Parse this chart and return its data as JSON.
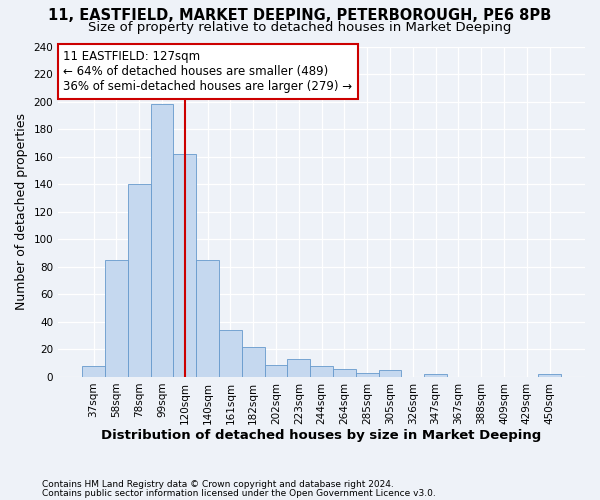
{
  "title1": "11, EASTFIELD, MARKET DEEPING, PETERBOROUGH, PE6 8PB",
  "title2": "Size of property relative to detached houses in Market Deeping",
  "xlabel": "Distribution of detached houses by size in Market Deeping",
  "ylabel": "Number of detached properties",
  "categories": [
    "37sqm",
    "58sqm",
    "78sqm",
    "99sqm",
    "120sqm",
    "140sqm",
    "161sqm",
    "182sqm",
    "202sqm",
    "223sqm",
    "244sqm",
    "264sqm",
    "285sqm",
    "305sqm",
    "326sqm",
    "347sqm",
    "367sqm",
    "388sqm",
    "409sqm",
    "429sqm",
    "450sqm"
  ],
  "values": [
    8,
    85,
    140,
    198,
    162,
    85,
    34,
    22,
    9,
    13,
    8,
    6,
    3,
    5,
    0,
    2,
    0,
    0,
    0,
    0,
    2
  ],
  "bar_color": "#c5d8ef",
  "bar_edge_color": "#6699cc",
  "vline_color": "#cc0000",
  "vline_x": 4.0,
  "annotation_line1": "11 EASTFIELD: 127sqm",
  "annotation_line2": "← 64% of detached houses are smaller (489)",
  "annotation_line3": "36% of semi-detached houses are larger (279) →",
  "annotation_box_facecolor": "#ffffff",
  "annotation_box_edgecolor": "#cc0000",
  "ylim": [
    0,
    240
  ],
  "yticks": [
    0,
    20,
    40,
    60,
    80,
    100,
    120,
    140,
    160,
    180,
    200,
    220,
    240
  ],
  "footer1": "Contains HM Land Registry data © Crown copyright and database right 2024.",
  "footer2": "Contains public sector information licensed under the Open Government Licence v3.0.",
  "background_color": "#eef2f8",
  "grid_color": "#ffffff",
  "title1_fontsize": 10.5,
  "title2_fontsize": 9.5,
  "tick_fontsize": 7.5,
  "ylabel_fontsize": 9,
  "xlabel_fontsize": 9.5,
  "ann_fontsize": 8.5,
  "footer_fontsize": 6.5
}
